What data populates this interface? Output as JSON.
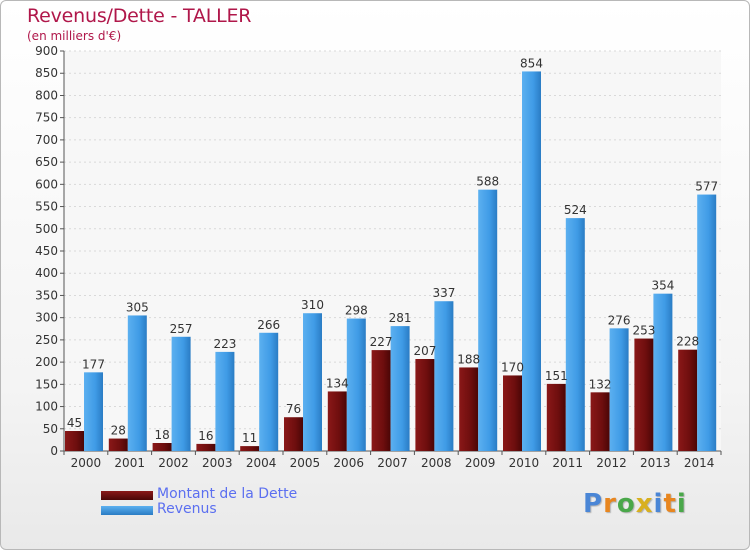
{
  "header": {
    "title": "Revenus/Dette - TALLER",
    "subtitle": "(en milliers d'€)"
  },
  "colors": {
    "dette": "#6e0e0e",
    "revenus": "#3f9be6",
    "title": "#b0174a",
    "axis_text": "#333333"
  },
  "chart_data": {
    "type": "bar",
    "title": "Revenus/Dette - TALLER",
    "ylabel": "(en milliers d'€)",
    "xlabel": "",
    "ylim": [
      0,
      900
    ],
    "yticks": [
      0,
      50,
      100,
      150,
      200,
      250,
      300,
      350,
      400,
      450,
      500,
      550,
      600,
      650,
      700,
      750,
      800,
      850,
      900
    ],
    "grid": true,
    "categories": [
      "2000",
      "2001",
      "2002",
      "2003",
      "2004",
      "2005",
      "2006",
      "2007",
      "2008",
      "2009",
      "2010",
      "2011",
      "2012",
      "2013",
      "2014"
    ],
    "series": [
      {
        "name": "Montant de la Dette",
        "color": "#6e0e0e",
        "values": [
          45,
          28,
          18,
          16,
          11,
          76,
          134,
          227,
          207,
          188,
          170,
          151,
          132,
          253,
          228
        ]
      },
      {
        "name": "Revenus",
        "color": "#3f9be6",
        "values": [
          177,
          305,
          257,
          223,
          266,
          310,
          298,
          281,
          337,
          588,
          854,
          524,
          276,
          354,
          577
        ]
      }
    ],
    "legend_position": "bottom-left"
  },
  "legend": {
    "items": [
      {
        "label": "Montant de la Dette",
        "color": "#6e0e0e"
      },
      {
        "label": "Revenus",
        "color": "#3f9be6"
      }
    ]
  },
  "logo": {
    "text": "Proxiti",
    "letter_colors": [
      "#4a86d6",
      "#e8861f",
      "#4aa84a",
      "#d8b020",
      "#4a86d6",
      "#e8861f",
      "#4aa84a"
    ]
  }
}
